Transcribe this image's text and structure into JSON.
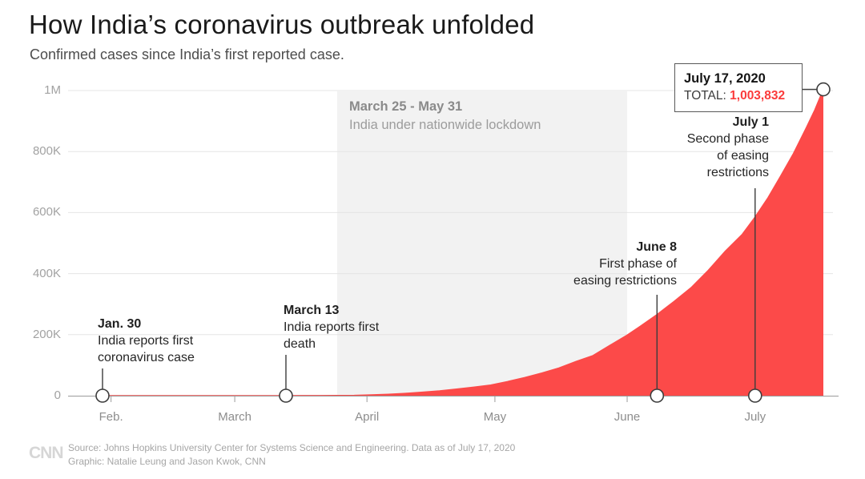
{
  "header": {
    "title": "How India’s coronavirus outbreak unfolded",
    "subtitle": "Confirmed cases since India’s first reported case."
  },
  "chart_data": {
    "type": "area",
    "title": "How India’s coronavirus outbreak unfolded",
    "subtitle": "Confirmed cases since India’s first reported case.",
    "area_color": "#fc4a49",
    "ylim": [
      0,
      1000000
    ],
    "y_axis": {
      "labels": [
        "0",
        "200K",
        "400K",
        "600K",
        "800K",
        "1M"
      ],
      "values": [
        0,
        200000,
        400000,
        600000,
        800000,
        1000000
      ]
    },
    "x_axis": {
      "labels": [
        "Feb.",
        "March",
        "April",
        "May",
        "June",
        "July"
      ],
      "dates": [
        "2020-02-01",
        "2020-03-01",
        "2020-04-01",
        "2020-05-01",
        "2020-06-01",
        "2020-07-01"
      ]
    },
    "points": [
      [
        "2020-01-30",
        1
      ],
      [
        "2020-02-15",
        3
      ],
      [
        "2020-03-01",
        3
      ],
      [
        "2020-03-06",
        31
      ],
      [
        "2020-03-10",
        50
      ],
      [
        "2020-03-13",
        82
      ],
      [
        "2020-03-17",
        142
      ],
      [
        "2020-03-21",
        330
      ],
      [
        "2020-03-25",
        657
      ],
      [
        "2020-03-29",
        1024
      ],
      [
        "2020-04-02",
        2543
      ],
      [
        "2020-04-06",
        4778
      ],
      [
        "2020-04-10",
        7600
      ],
      [
        "2020-04-14",
        11487
      ],
      [
        "2020-04-18",
        15722
      ],
      [
        "2020-04-22",
        21393
      ],
      [
        "2020-04-26",
        27890
      ],
      [
        "2020-04-30",
        34863
      ],
      [
        "2020-05-04",
        46437
      ],
      [
        "2020-05-08",
        59695
      ],
      [
        "2020-05-12",
        74292
      ],
      [
        "2020-05-16",
        90648
      ],
      [
        "2020-05-20",
        112028
      ],
      [
        "2020-05-24",
        131423
      ],
      [
        "2020-05-28",
        165386
      ],
      [
        "2020-06-01",
        198370
      ],
      [
        "2020-06-04",
        226713
      ],
      [
        "2020-06-08",
        265928
      ],
      [
        "2020-06-12",
        308993
      ],
      [
        "2020-06-16",
        354161
      ],
      [
        "2020-06-20",
        410461
      ],
      [
        "2020-06-24",
        473105
      ],
      [
        "2020-06-28",
        528859
      ],
      [
        "2020-07-01",
        585481
      ],
      [
        "2020-07-04",
        648315
      ],
      [
        "2020-07-07",
        719665
      ],
      [
        "2020-07-10",
        793802
      ],
      [
        "2020-07-13",
        878254
      ],
      [
        "2020-07-15",
        936181
      ],
      [
        "2020-07-17",
        1003832
      ]
    ],
    "lockdown_band": {
      "start": "2020-03-25",
      "end": "2020-06-01",
      "label_title": "March 25 - May 31",
      "label_text": "India under nationwide lockdown"
    },
    "annotations": [
      {
        "date": "2020-01-30",
        "title": "Jan. 30",
        "lines": [
          "India reports first",
          "coronavirus case"
        ]
      },
      {
        "date": "2020-03-13",
        "title": "March 13",
        "lines": [
          "India reports first",
          "death"
        ]
      },
      {
        "date": "2020-06-08",
        "title": "June 8",
        "lines": [
          "First phase of",
          "easing restrictions"
        ]
      },
      {
        "date": "2020-07-01",
        "title": "July 1",
        "lines": [
          "Second phase",
          "of easing",
          "restrictions"
        ]
      }
    ],
    "endpoint": {
      "date": "2020-07-17",
      "date_label": "July 17, 2020",
      "total_label": "TOTAL:",
      "total_value": "1,003,832",
      "value": 1003832
    }
  },
  "footer": {
    "logo": "CNN",
    "source": "Source: Johns Hopkins University Center for Systems Science and Engineering. Data as of July 17, 2020",
    "graphic": "Graphic: Natalie Leung and Jason Kwok, CNN"
  }
}
